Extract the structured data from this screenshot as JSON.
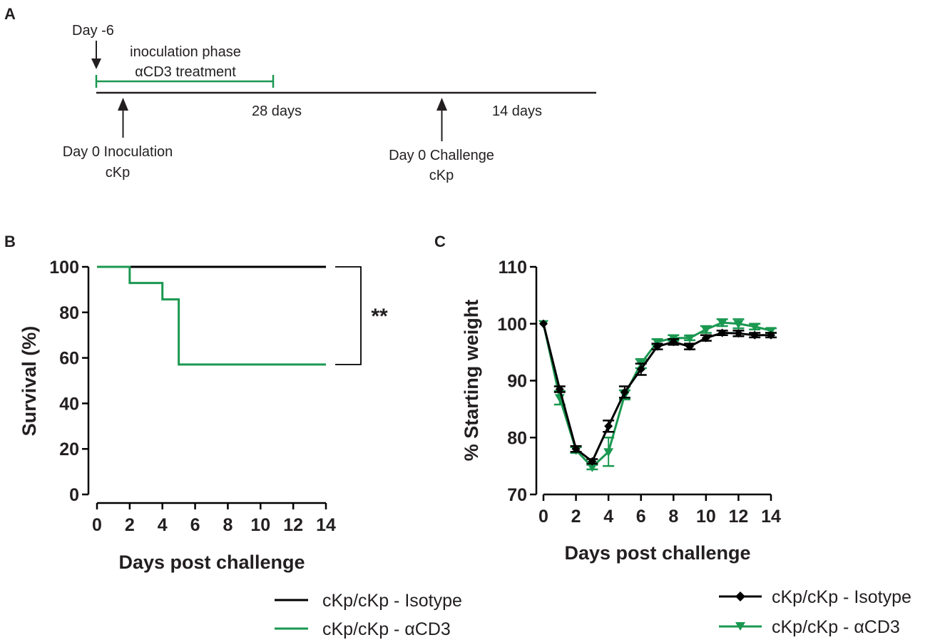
{
  "colors": {
    "isotype": "#000000",
    "acd3": "#1a9850",
    "green": "#1a9850",
    "black": "#000000"
  },
  "panel_a": {
    "label": "A",
    "day_minus6": "Day -6",
    "inoculation_phase": "inoculation phase",
    "treatment": "αCD3 treatment",
    "duration_1": "28 days",
    "duration_2": "14 days",
    "inoculation_line1": "Day 0 Inoculation",
    "inoculation_line2": "cKp",
    "challenge_line1": "Day 0 Challenge",
    "challenge_line2": "cKp"
  },
  "chart_data": [
    {
      "panel": "B",
      "type": "line",
      "subtype": "survival-step",
      "xlabel": "Days post challenge",
      "ylabel": "Survival (%)",
      "xlim": [
        0,
        14
      ],
      "ylim": [
        0,
        100
      ],
      "xticks": [
        0,
        2,
        4,
        6,
        8,
        10,
        12,
        14
      ],
      "yticks": [
        0,
        20,
        40,
        60,
        80,
        100
      ],
      "significance": "**",
      "series": [
        {
          "name": "cKp/cKp - Isotype",
          "color": "#000000",
          "x": [
            0,
            14
          ],
          "y": [
            100,
            100
          ]
        },
        {
          "name": "cKp/cKp - αCD3",
          "color": "#1a9850",
          "x": [
            0,
            2,
            4,
            5,
            14
          ],
          "y": [
            100,
            92.9,
            85.7,
            57.1,
            57.1
          ]
        }
      ],
      "legend": [
        "cKp/cKp - Isotype",
        "cKp/cKp - αCD3"
      ]
    },
    {
      "panel": "C",
      "type": "line",
      "xlabel": "Days post challenge",
      "ylabel": "% Starting weight",
      "xlim": [
        0,
        14
      ],
      "ylim": [
        70,
        110
      ],
      "xticks": [
        0,
        2,
        4,
        6,
        8,
        10,
        12,
        14
      ],
      "yticks": [
        70,
        80,
        90,
        100,
        110
      ],
      "series": [
        {
          "name": "cKp/cKp - Isotype",
          "color": "#000000",
          "marker": "diamond",
          "x": [
            0,
            1,
            2,
            3,
            4,
            5,
            6,
            7,
            8,
            9,
            10,
            11,
            12,
            13,
            14
          ],
          "y": [
            100,
            88.5,
            78,
            75.8,
            82,
            88,
            92,
            96,
            96.8,
            96,
            97.5,
            98.4,
            98.3,
            98,
            98
          ],
          "err": [
            0,
            0.5,
            0.5,
            0.4,
            1,
            1,
            1,
            0.5,
            0.5,
            0.5,
            0.5,
            0.4,
            0.5,
            0.4,
            0.4
          ]
        },
        {
          "name": "cKp/cKp - αCD3",
          "color": "#1a9850",
          "marker": "triangle-down",
          "x": [
            0,
            1,
            2,
            3,
            4,
            5,
            6,
            7,
            8,
            9,
            10,
            11,
            12,
            13,
            14
          ],
          "y": [
            100,
            87,
            77.8,
            74.8,
            77.5,
            87.5,
            93,
            96.8,
            97.5,
            97.5,
            99,
            100.2,
            100,
            99.5,
            98.8
          ],
          "err": [
            0,
            1.2,
            0.5,
            0.4,
            2.5,
            0.8,
            0.8,
            0.5,
            0.5,
            0.4,
            0.6,
            0.6,
            0.8,
            0.5,
            0.4
          ]
        }
      ],
      "legend": [
        "cKp/cKp - Isotype",
        "cKp/cKp - αCD3"
      ]
    }
  ]
}
